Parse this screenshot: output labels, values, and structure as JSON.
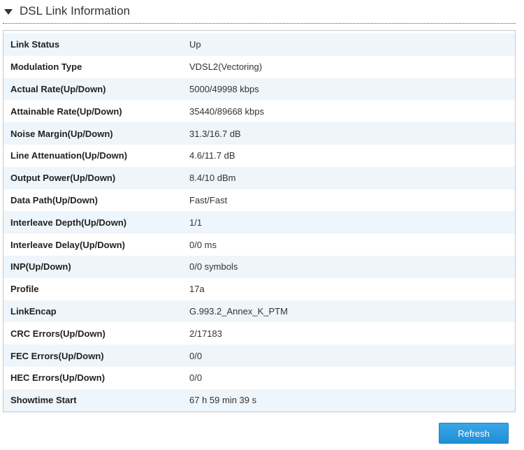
{
  "section": {
    "title": "DSL Link Information"
  },
  "rows": [
    {
      "label": "Link Status",
      "value": "Up"
    },
    {
      "label": "Modulation Type",
      "value": "VDSL2(Vectoring)"
    },
    {
      "label": "Actual Rate(Up/Down)",
      "value": "5000/49998 kbps"
    },
    {
      "label": "Attainable Rate(Up/Down)",
      "value": "35440/89668 kbps"
    },
    {
      "label": "Noise Margin(Up/Down)",
      "value": "31.3/16.7 dB"
    },
    {
      "label": "Line Attenuation(Up/Down)",
      "value": "4.6/11.7 dB"
    },
    {
      "label": "Output Power(Up/Down)",
      "value": "8.4/10 dBm"
    },
    {
      "label": "Data Path(Up/Down)",
      "value": "Fast/Fast"
    },
    {
      "label": "Interleave Depth(Up/Down)",
      "value": "1/1"
    },
    {
      "label": "Interleave Delay(Up/Down)",
      "value": "0/0 ms"
    },
    {
      "label": "INP(Up/Down)",
      "value": "0/0 symbols"
    },
    {
      "label": "Profile",
      "value": "17a"
    },
    {
      "label": "LinkEncap",
      "value": "G.993.2_Annex_K_PTM"
    },
    {
      "label": "CRC Errors(Up/Down)",
      "value": "2/17183"
    },
    {
      "label": "FEC Errors(Up/Down)",
      "value": "0/0"
    },
    {
      "label": "HEC Errors(Up/Down)",
      "value": "0/0"
    },
    {
      "label": "Showtime Start",
      "value": "67 h 59 min 39 s"
    }
  ],
  "actions": {
    "refresh_label": "Refresh"
  },
  "colors": {
    "accent": "#2a9be0",
    "row_stripe": "#eef5fb"
  }
}
